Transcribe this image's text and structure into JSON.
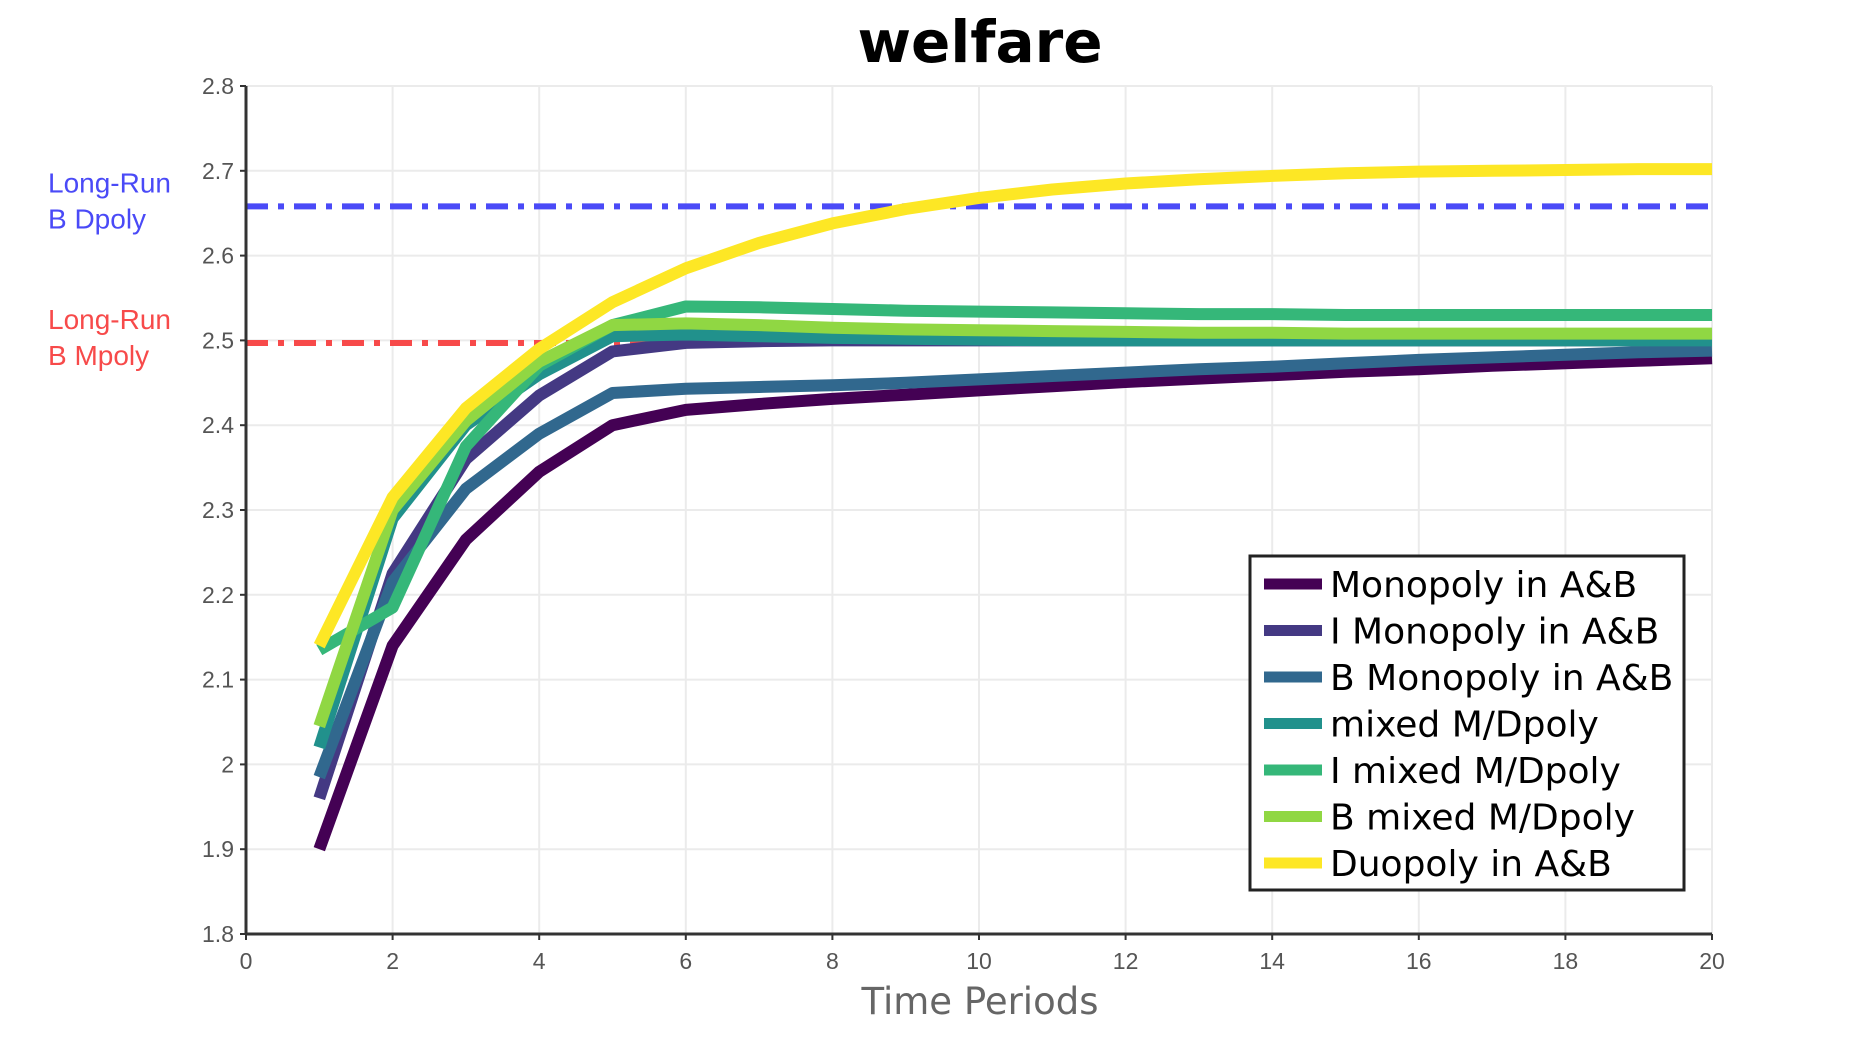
{
  "chart_data": {
    "type": "line",
    "title": "welfare",
    "xlabel": "Time Periods",
    "ylabel": "",
    "xlim": [
      0,
      20
    ],
    "ylim": [
      1.8,
      2.8
    ],
    "xticks": [
      0,
      2,
      4,
      6,
      8,
      10,
      12,
      14,
      16,
      18,
      20
    ],
    "yticks": [
      1.8,
      1.9,
      2,
      2.1,
      2.2,
      2.3,
      2.4,
      2.5,
      2.6,
      2.7,
      2.8
    ],
    "xtick_labels": [
      "0",
      "2",
      "4",
      "6",
      "8",
      "10",
      "12",
      "14",
      "16",
      "18",
      "20"
    ],
    "ytick_labels": [
      "1.8",
      "1.9",
      "2",
      "2.1",
      "2.2",
      "2.3",
      "2.4",
      "2.5",
      "2.6",
      "2.7",
      "2.8"
    ],
    "grid": true,
    "legend_position": "bottom-right",
    "x": [
      1,
      2,
      3,
      4,
      5,
      6,
      7,
      8,
      9,
      10,
      11,
      12,
      13,
      14,
      15,
      16,
      17,
      18,
      19,
      20
    ],
    "series": [
      {
        "name": "Monopoly in A&B",
        "color": "#440154",
        "values": [
          1.9,
          2.14,
          2.265,
          2.345,
          2.4,
          2.418,
          2.425,
          2.431,
          2.436,
          2.441,
          2.446,
          2.451,
          2.455,
          2.459,
          2.463,
          2.466,
          2.47,
          2.473,
          2.476,
          2.479
        ]
      },
      {
        "name": "I Monopoly in A&B",
        "color": "#443983",
        "values": [
          1.96,
          2.225,
          2.36,
          2.435,
          2.487,
          2.497,
          2.499,
          2.5,
          2.5,
          2.5,
          2.5,
          2.5,
          2.5,
          2.5,
          2.5,
          2.5,
          2.5,
          2.5,
          2.5,
          2.5
        ]
      },
      {
        "name": "B Monopoly in A&B",
        "color": "#31688e",
        "values": [
          1.985,
          2.215,
          2.325,
          2.39,
          2.438,
          2.443,
          2.445,
          2.447,
          2.45,
          2.454,
          2.458,
          2.462,
          2.466,
          2.469,
          2.473,
          2.477,
          2.48,
          2.483,
          2.486,
          2.488
        ]
      },
      {
        "name": "mixed M/Dpoly",
        "color": "#21918c",
        "values": [
          2.02,
          2.29,
          2.4,
          2.46,
          2.505,
          2.507,
          2.505,
          2.503,
          2.502,
          2.501,
          2.5,
          2.5,
          2.5,
          2.5,
          2.5,
          2.5,
          2.5,
          2.5,
          2.5,
          2.5
        ]
      },
      {
        "name": "I mixed M/Dpoly",
        "color": "#35b779",
        "values": [
          2.135,
          2.185,
          2.375,
          2.47,
          2.518,
          2.54,
          2.539,
          2.537,
          2.535,
          2.534,
          2.533,
          2.532,
          2.531,
          2.531,
          2.53,
          2.53,
          2.53,
          2.53,
          2.53,
          2.53
        ]
      },
      {
        "name": "B mixed M/Dpoly",
        "color": "#90d743",
        "values": [
          2.045,
          2.3,
          2.405,
          2.475,
          2.518,
          2.52,
          2.518,
          2.515,
          2.513,
          2.512,
          2.511,
          2.51,
          2.509,
          2.509,
          2.508,
          2.508,
          2.508,
          2.508,
          2.508,
          2.508
        ]
      },
      {
        "name": "Duopoly in A&B",
        "color": "#fde725",
        "values": [
          2.14,
          2.315,
          2.42,
          2.49,
          2.545,
          2.585,
          2.615,
          2.638,
          2.655,
          2.668,
          2.678,
          2.685,
          2.69,
          2.694,
          2.697,
          2.699,
          2.7,
          2.701,
          2.702,
          2.702
        ]
      }
    ],
    "reference_lines": [
      {
        "label_lines": [
          "Long-Run",
          "B Dpoly"
        ],
        "y": 2.658,
        "color": "#4a4af7"
      },
      {
        "label_lines": [
          "Long-Run",
          "B Mpoly"
        ],
        "y": 2.497,
        "color": "#f74a4a"
      }
    ]
  }
}
